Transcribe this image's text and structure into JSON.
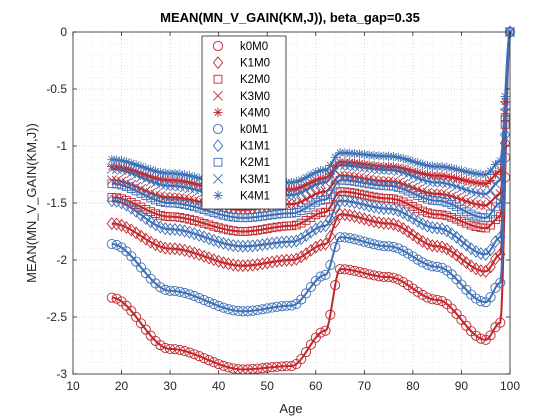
{
  "chart_data": {
    "type": "line",
    "title": "MEAN(MN_V_GAIN(KM,J)), beta_gap=0.35",
    "xlabel": "Age",
    "ylabel": "MEAN(MN_V_GAIN(KM,J))",
    "xlim": [
      10,
      100
    ],
    "ylim": [
      -3,
      0
    ],
    "xticks": [
      10,
      20,
      30,
      40,
      50,
      60,
      70,
      80,
      90,
      100
    ],
    "yticks": [
      -3,
      -2.5,
      -2,
      -1.5,
      -1,
      -0.5,
      0
    ],
    "xtick_labels": [
      "10",
      "20",
      "30",
      "40",
      "50",
      "60",
      "70",
      "80",
      "90",
      "100"
    ],
    "ytick_labels": [
      "-3",
      "-2.5",
      "-2",
      "-1.5",
      "-1",
      "-0.5",
      "0"
    ],
    "grid": "major and minor dotted",
    "legend_position": "top-center",
    "colors": {
      "red": "#c1272d",
      "blue": "#3d6fb6"
    },
    "x_range": [
      18,
      100
    ],
    "series": [
      {
        "name": "k0M0",
        "color": "#c1272d",
        "marker": "circle",
        "key_values": {
          "18": -2.33,
          "30": -2.78,
          "45": -2.96,
          "55": -2.93,
          "62": -2.62,
          "65": -2.08,
          "75": -2.15,
          "85": -2.35,
          "95": -2.7,
          "98": -2.55,
          "100": 0
        }
      },
      {
        "name": "K1M0",
        "color": "#c1272d",
        "marker": "diamond",
        "key_values": {
          "18": -1.68,
          "30": -1.9,
          "45": -2.05,
          "55": -2.0,
          "62": -1.86,
          "65": -1.6,
          "75": -1.68,
          "85": -1.88,
          "95": -2.1,
          "98": -1.95,
          "100": 0
        }
      },
      {
        "name": "K2M0",
        "color": "#c1272d",
        "marker": "square",
        "key_values": {
          "18": -1.45,
          "30": -1.62,
          "45": -1.75,
          "55": -1.7,
          "62": -1.58,
          "65": -1.4,
          "75": -1.46,
          "85": -1.6,
          "95": -1.72,
          "98": -1.62,
          "100": 0
        }
      },
      {
        "name": "K3M0",
        "color": "#c1272d",
        "marker": "x",
        "key_values": {
          "18": -1.3,
          "30": -1.45,
          "45": -1.56,
          "55": -1.51,
          "62": -1.4,
          "65": -1.26,
          "75": -1.31,
          "85": -1.42,
          "95": -1.52,
          "98": -1.42,
          "100": 0
        }
      },
      {
        "name": "K4M0",
        "color": "#c1272d",
        "marker": "asterisk",
        "key_values": {
          "18": -1.18,
          "30": -1.3,
          "45": -1.42,
          "55": -1.38,
          "62": -1.28,
          "65": -1.14,
          "75": -1.18,
          "85": -1.26,
          "95": -1.33,
          "98": -1.22,
          "100": 0
        }
      },
      {
        "name": "k0M1",
        "color": "#3d6fb6",
        "marker": "circle",
        "key_values": {
          "18": -1.86,
          "30": -2.27,
          "45": -2.45,
          "55": -2.4,
          "62": -2.13,
          "65": -1.8,
          "75": -1.88,
          "85": -2.06,
          "95": -2.37,
          "98": -2.2,
          "100": 0
        }
      },
      {
        "name": "K1M1",
        "color": "#3d6fb6",
        "marker": "diamond",
        "key_values": {
          "18": -1.48,
          "30": -1.73,
          "45": -1.88,
          "55": -1.84,
          "62": -1.7,
          "65": -1.48,
          "75": -1.55,
          "85": -1.72,
          "95": -1.95,
          "98": -1.8,
          "100": 0
        }
      },
      {
        "name": "K2M1",
        "color": "#3d6fb6",
        "marker": "square",
        "key_values": {
          "18": -1.33,
          "30": -1.5,
          "45": -1.63,
          "55": -1.59,
          "62": -1.47,
          "65": -1.3,
          "75": -1.35,
          "85": -1.48,
          "95": -1.63,
          "98": -1.5,
          "100": 0
        }
      },
      {
        "name": "K3M1",
        "color": "#3d6fb6",
        "marker": "x",
        "key_values": {
          "18": -1.2,
          "30": -1.35,
          "45": -1.47,
          "55": -1.43,
          "62": -1.32,
          "65": -1.17,
          "75": -1.21,
          "85": -1.32,
          "95": -1.42,
          "98": -1.3,
          "100": 0
        }
      },
      {
        "name": "K4M1",
        "color": "#3d6fb6",
        "marker": "asterisk",
        "key_values": {
          "18": -1.12,
          "30": -1.24,
          "45": -1.36,
          "55": -1.32,
          "62": -1.21,
          "65": -1.06,
          "75": -1.09,
          "85": -1.18,
          "95": -1.25,
          "98": -1.13,
          "100": 0
        }
      }
    ]
  }
}
